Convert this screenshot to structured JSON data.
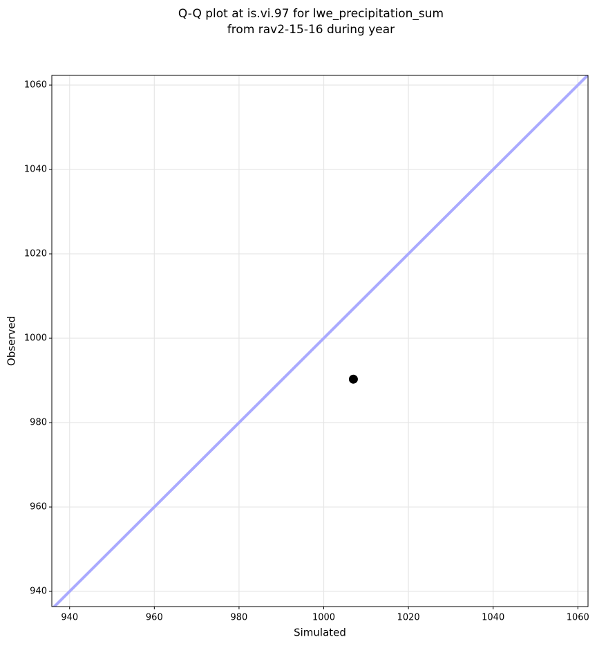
{
  "chart_data": {
    "type": "scatter",
    "title": [
      "Q-Q plot at is.vi.97 for lwe_precipitation_sum",
      "from rav2-15-16 during year"
    ],
    "x_label": "Simulated",
    "y_label": "Observed",
    "series": [
      {
        "x": [
          1007.0
        ],
        "values": [
          990.3
        ],
        "color": "#000000"
      }
    ],
    "reference_line_color": "#aaaaff",
    "xlim": [
      935.8,
      1062.4
    ],
    "ylim": [
      936.4,
      1062.3
    ],
    "xticks": [
      940,
      960,
      980,
      1000,
      1020,
      1040,
      1060
    ],
    "yticks": [
      940,
      960,
      980,
      1000,
      1020,
      1040,
      1060
    ],
    "grid": true
  }
}
